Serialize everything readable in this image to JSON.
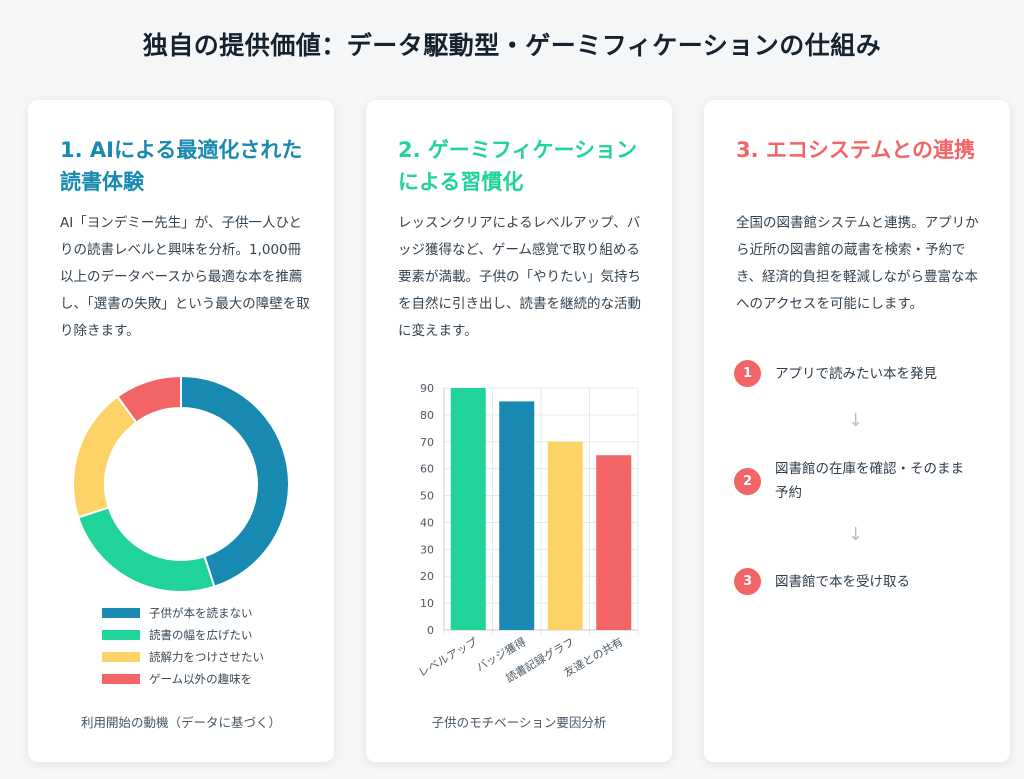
{
  "title": "独自の提供価値：データ駆動型・ゲーミフィケーションの仕組み",
  "colors": {
    "blue": "#1889b1",
    "green": "#1fd39a",
    "yellow": "#fdd266",
    "red": "#f26466"
  },
  "cards": [
    {
      "title": "1. AIによる最適化された読書体験",
      "body": "AI「ヨンデミー先生」が、子供一人ひとりの読書レベルと興味を分析。1,000冊以上のデータベースから最適な本を推薦し、「選書の失敗」という最大の障壁を取り除きます。",
      "caption": "利用開始の動機（データに基づく）"
    },
    {
      "title": "2. ゲーミフィケーションによる習慣化",
      "body": "レッスンクリアによるレベルアップ、バッジ獲得など、ゲーム感覚で取り組める要素が満載。子供の「やりたい」気持ちを自然に引き出し、読書を継続的な活動に変えます。",
      "caption": "子供のモチベーション要因分析"
    },
    {
      "title": "3. エコシステムとの連携",
      "body": "全国の図書館システムと連携。アプリから近所の図書館の蔵書を検索・予約でき、経済的負担を軽減しながら豊富な本へのアクセスを可能にします。",
      "steps": [
        {
          "num": "1",
          "text": "アプリで読みたい本を発見"
        },
        {
          "num": "2",
          "text": "図書館の在庫を確認・そのまま予約"
        },
        {
          "num": "3",
          "text": "図書館で本を受け取る"
        }
      ],
      "arrow": "↓"
    }
  ],
  "chart_data": [
    {
      "type": "pie",
      "labels": [
        "子供が本を読まない",
        "読書の幅を広げたい",
        "読解力をつけさせたい",
        "ゲーム以外の趣味を"
      ],
      "values": [
        45,
        25,
        20,
        10
      ],
      "colors": [
        "#1889b1",
        "#1fd39a",
        "#fdd266",
        "#f26466"
      ],
      "legend": "bottom"
    },
    {
      "type": "bar",
      "categories": [
        "レベルアップ",
        "バッジ獲得",
        "読書記録グラフ",
        "友達との共有"
      ],
      "values": [
        90,
        85,
        70,
        65
      ],
      "colors": [
        "#1fd39a",
        "#1889b1",
        "#fdd266",
        "#f26466"
      ],
      "ylim": [
        0,
        90
      ],
      "yticks": [
        0,
        10,
        20,
        30,
        40,
        50,
        60,
        70,
        80,
        90
      ],
      "grid": true
    }
  ]
}
